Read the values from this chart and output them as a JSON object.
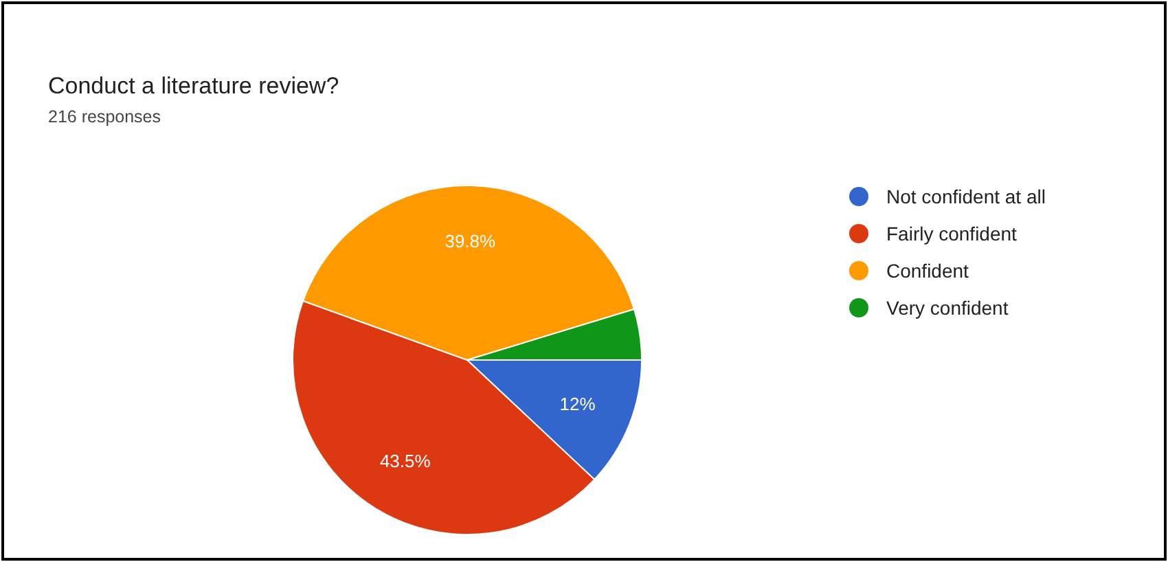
{
  "chart_data": {
    "type": "pie",
    "title": "Conduct a literature review?",
    "subtitle": "216 responses",
    "categories": [
      "Not confident at all",
      "Fairly confident",
      "Confident",
      "Very confident"
    ],
    "values": [
      12,
      43.5,
      39.8,
      4.7
    ],
    "colors": [
      "#3366cc",
      "#dc3912",
      "#ff9900",
      "#109618"
    ],
    "value_labels": [
      "12%",
      "43.5%",
      "39.8%",
      null
    ],
    "legend": "right"
  }
}
